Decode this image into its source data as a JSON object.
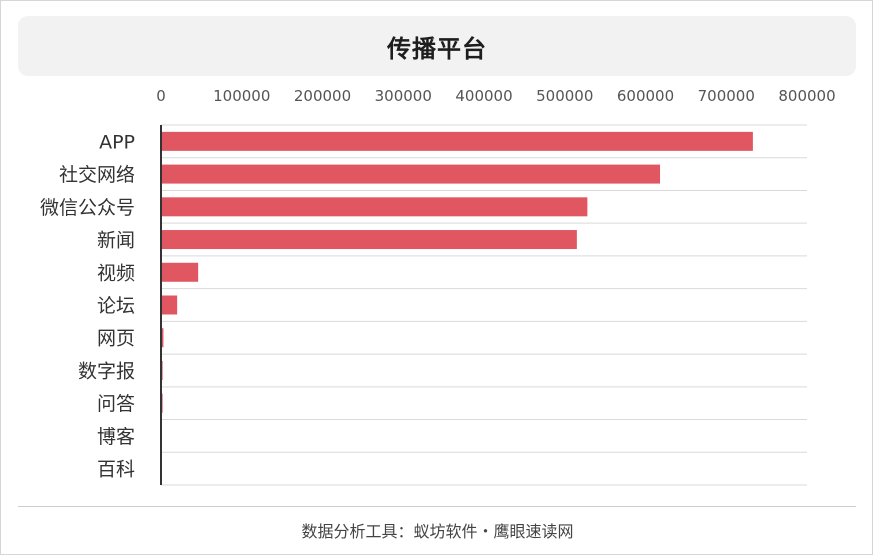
{
  "title": "传播平台",
  "footer": "数据分析工具：蚁坊软件・鹰眼速读网",
  "colors": {
    "bar": "#e05762",
    "grid": "#d9d9d9",
    "axis": "#333333"
  },
  "chart_data": {
    "type": "bar",
    "orientation": "horizontal",
    "title": "传播平台",
    "categories": [
      "APP",
      "社交网络",
      "微信公众号",
      "新闻",
      "视频",
      "论坛",
      "网页",
      "数字报",
      "问答",
      "博客",
      "百科"
    ],
    "values": [
      733000,
      618000,
      528000,
      515000,
      46000,
      20000,
      3000,
      2000,
      2000,
      500,
      300
    ],
    "xlim": [
      0,
      800000
    ],
    "xticks": [
      0,
      100000,
      200000,
      300000,
      400000,
      500000,
      600000,
      700000,
      800000
    ],
    "xtick_labels": [
      "0",
      "100000",
      "200000",
      "300000",
      "400000",
      "500000",
      "600000",
      "700000",
      "800000"
    ],
    "xaxis_position": "top",
    "grid": true,
    "legend": "none"
  }
}
